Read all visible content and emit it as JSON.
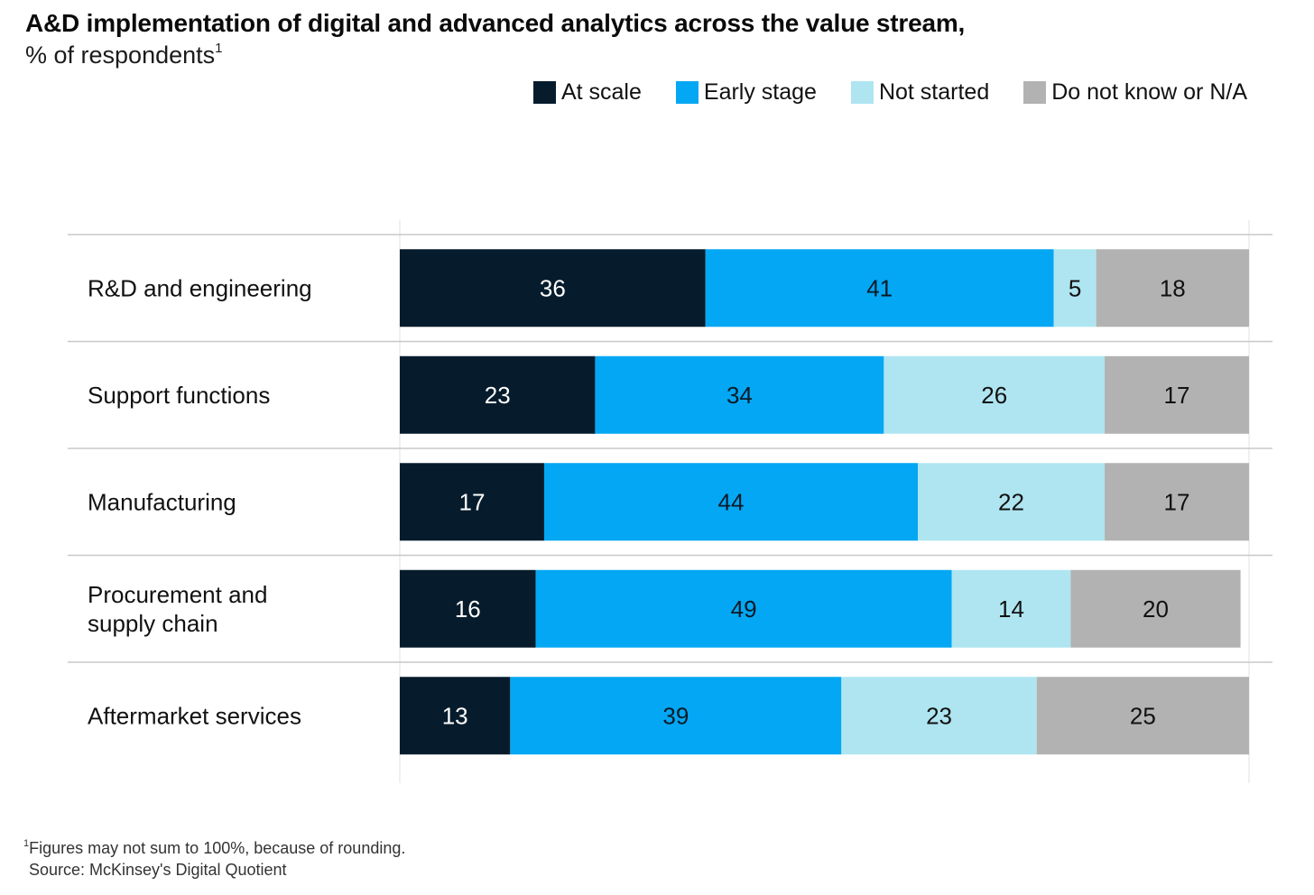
{
  "title": "A&D implementation of digital and advanced analytics across the value stream,",
  "subtitle": "% of respondents",
  "subtitle_sup": "1",
  "footnote_mark": "1",
  "footnote": "Figures may not sum to 100%, because of rounding.",
  "source": "Source: McKinsey's Digital Quotient",
  "colors": {
    "at_scale": "#061c2c",
    "early_stage": "#04a7f3",
    "not_started": "#aee5f1",
    "do_not_know": "#b2b2b2",
    "gridline": "#c8c8c8"
  },
  "chart_data": {
    "type": "bar",
    "orientation": "horizontal",
    "stacked": true,
    "xlim": [
      0,
      100
    ],
    "legend_position": "top-right",
    "categories": [
      "R&D and engineering",
      "Support functions",
      "Manufacturing",
      "Procurement and\nsupply chain",
      "Aftermarket services"
    ],
    "series": [
      {
        "name": "At scale",
        "color": "#061c2c",
        "values": [
          36,
          23,
          17,
          16,
          13
        ]
      },
      {
        "name": "Early stage",
        "color": "#04a7f3",
        "values": [
          41,
          34,
          44,
          49,
          39
        ]
      },
      {
        "name": "Not started",
        "color": "#aee5f1",
        "values": [
          5,
          26,
          22,
          14,
          23
        ]
      },
      {
        "name": "Do not know or N/A",
        "color": "#b2b2b2",
        "values": [
          18,
          17,
          17,
          20,
          25
        ]
      }
    ]
  }
}
